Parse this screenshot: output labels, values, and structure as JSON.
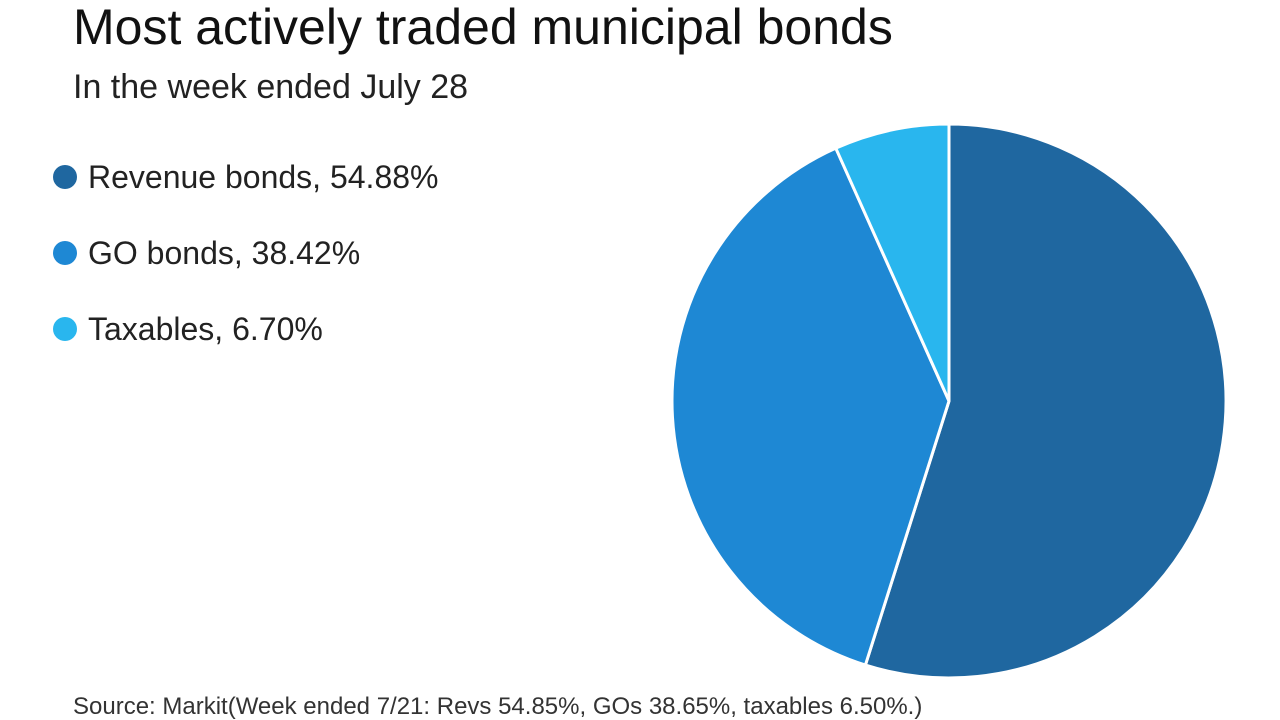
{
  "chart_data": {
    "type": "pie",
    "title": "Most actively traded municipal bonds",
    "subtitle": "In the week ended July 28",
    "categories": [
      "Revenue bonds, 54.88%",
      "GO bonds, 38.42%",
      "Taxables, 6.70%"
    ],
    "values": [
      54.88,
      38.42,
      6.7
    ],
    "colors": [
      "#1f67a0",
      "#1e88d4",
      "#29b6ee"
    ],
    "legend": "left",
    "source": "Source: Markit(Week ended 7/21: Revs 54.85%, GOs 38.65%, taxables 6.50%.)"
  }
}
